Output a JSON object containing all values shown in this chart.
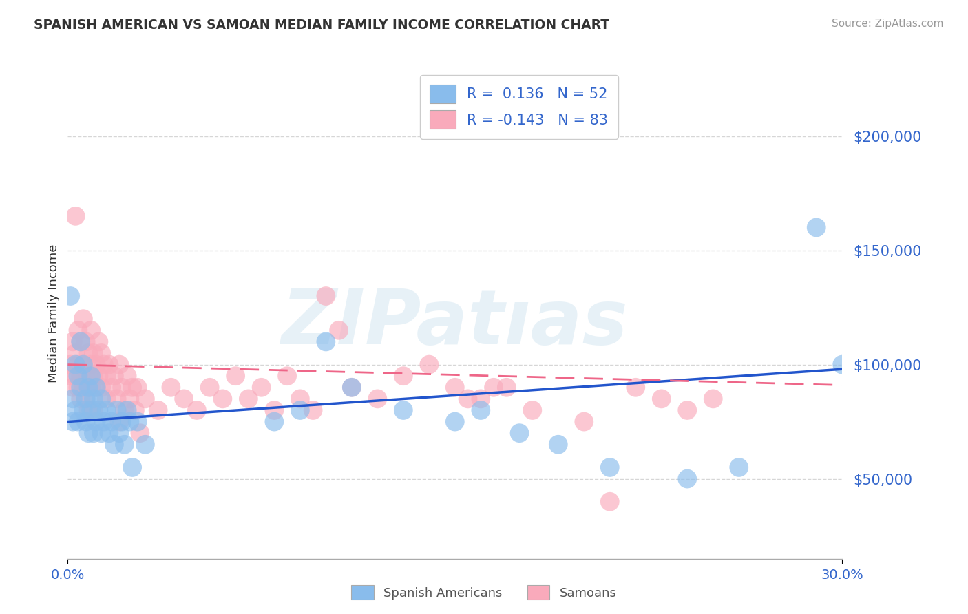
{
  "title": "SPANISH AMERICAN VS SAMOAN MEDIAN FAMILY INCOME CORRELATION CHART",
  "source": "Source: ZipAtlas.com",
  "ylabel": "Median Family Income",
  "ytick_values": [
    50000,
    100000,
    150000,
    200000
  ],
  "xmin": 0.0,
  "xmax": 0.3,
  "ymin": 15000,
  "ymax": 230000,
  "r_blue": 0.136,
  "n_blue": 52,
  "r_pink": -0.143,
  "n_pink": 83,
  "legend_label_blue": "Spanish Americans",
  "legend_label_pink": "Samoans",
  "watermark": "ZIPatıas",
  "blue_color": "#89BCEC",
  "pink_color": "#F9AABB",
  "blue_line_color": "#2255CC",
  "pink_line_color": "#EE6688",
  "axis_color": "#3366CC",
  "blue_scatter": [
    [
      0.001,
      130000
    ],
    [
      0.002,
      85000
    ],
    [
      0.002,
      75000
    ],
    [
      0.003,
      100000
    ],
    [
      0.003,
      80000
    ],
    [
      0.004,
      95000
    ],
    [
      0.004,
      75000
    ],
    [
      0.005,
      90000
    ],
    [
      0.005,
      110000
    ],
    [
      0.006,
      80000
    ],
    [
      0.006,
      100000
    ],
    [
      0.007,
      85000
    ],
    [
      0.007,
      75000
    ],
    [
      0.008,
      90000
    ],
    [
      0.008,
      70000
    ],
    [
      0.009,
      95000
    ],
    [
      0.009,
      80000
    ],
    [
      0.01,
      85000
    ],
    [
      0.01,
      70000
    ],
    [
      0.011,
      90000
    ],
    [
      0.011,
      75000
    ],
    [
      0.012,
      80000
    ],
    [
      0.013,
      70000
    ],
    [
      0.013,
      85000
    ],
    [
      0.014,
      75000
    ],
    [
      0.015,
      80000
    ],
    [
      0.016,
      70000
    ],
    [
      0.017,
      75000
    ],
    [
      0.018,
      65000
    ],
    [
      0.019,
      80000
    ],
    [
      0.02,
      70000
    ],
    [
      0.021,
      75000
    ],
    [
      0.022,
      65000
    ],
    [
      0.023,
      80000
    ],
    [
      0.024,
      75000
    ],
    [
      0.025,
      55000
    ],
    [
      0.027,
      75000
    ],
    [
      0.03,
      65000
    ],
    [
      0.08,
      75000
    ],
    [
      0.09,
      80000
    ],
    [
      0.1,
      110000
    ],
    [
      0.11,
      90000
    ],
    [
      0.13,
      80000
    ],
    [
      0.15,
      75000
    ],
    [
      0.16,
      80000
    ],
    [
      0.175,
      70000
    ],
    [
      0.19,
      65000
    ],
    [
      0.21,
      55000
    ],
    [
      0.24,
      50000
    ],
    [
      0.26,
      55000
    ],
    [
      0.29,
      160000
    ],
    [
      0.3,
      100000
    ]
  ],
  "pink_scatter": [
    [
      0.001,
      100000
    ],
    [
      0.001,
      95000
    ],
    [
      0.002,
      110000
    ],
    [
      0.002,
      90000
    ],
    [
      0.003,
      165000
    ],
    [
      0.003,
      105000
    ],
    [
      0.003,
      95000
    ],
    [
      0.004,
      115000
    ],
    [
      0.004,
      100000
    ],
    [
      0.004,
      90000
    ],
    [
      0.005,
      110000
    ],
    [
      0.005,
      95000
    ],
    [
      0.005,
      85000
    ],
    [
      0.006,
      120000
    ],
    [
      0.006,
      100000
    ],
    [
      0.006,
      90000
    ],
    [
      0.007,
      110000
    ],
    [
      0.007,
      95000
    ],
    [
      0.007,
      85000
    ],
    [
      0.008,
      105000
    ],
    [
      0.008,
      95000
    ],
    [
      0.008,
      80000
    ],
    [
      0.009,
      115000
    ],
    [
      0.009,
      100000
    ],
    [
      0.009,
      90000
    ],
    [
      0.01,
      105000
    ],
    [
      0.01,
      95000
    ],
    [
      0.01,
      80000
    ],
    [
      0.011,
      100000
    ],
    [
      0.011,
      90000
    ],
    [
      0.012,
      110000
    ],
    [
      0.012,
      95000
    ],
    [
      0.013,
      105000
    ],
    [
      0.013,
      90000
    ],
    [
      0.014,
      100000
    ],
    [
      0.015,
      95000
    ],
    [
      0.015,
      85000
    ],
    [
      0.016,
      100000
    ],
    [
      0.017,
      90000
    ],
    [
      0.018,
      95000
    ],
    [
      0.019,
      85000
    ],
    [
      0.02,
      100000
    ],
    [
      0.02,
      75000
    ],
    [
      0.021,
      90000
    ],
    [
      0.022,
      80000
    ],
    [
      0.023,
      95000
    ],
    [
      0.024,
      85000
    ],
    [
      0.025,
      90000
    ],
    [
      0.026,
      80000
    ],
    [
      0.027,
      90000
    ],
    [
      0.028,
      70000
    ],
    [
      0.03,
      85000
    ],
    [
      0.035,
      80000
    ],
    [
      0.04,
      90000
    ],
    [
      0.045,
      85000
    ],
    [
      0.05,
      80000
    ],
    [
      0.055,
      90000
    ],
    [
      0.06,
      85000
    ],
    [
      0.065,
      95000
    ],
    [
      0.07,
      85000
    ],
    [
      0.075,
      90000
    ],
    [
      0.08,
      80000
    ],
    [
      0.085,
      95000
    ],
    [
      0.09,
      85000
    ],
    [
      0.095,
      80000
    ],
    [
      0.1,
      130000
    ],
    [
      0.105,
      115000
    ],
    [
      0.11,
      90000
    ],
    [
      0.12,
      85000
    ],
    [
      0.13,
      95000
    ],
    [
      0.14,
      100000
    ],
    [
      0.15,
      90000
    ],
    [
      0.16,
      85000
    ],
    [
      0.17,
      90000
    ],
    [
      0.18,
      80000
    ],
    [
      0.2,
      75000
    ],
    [
      0.21,
      40000
    ],
    [
      0.22,
      90000
    ],
    [
      0.23,
      85000
    ],
    [
      0.24,
      80000
    ],
    [
      0.25,
      85000
    ],
    [
      0.165,
      90000
    ],
    [
      0.155,
      85000
    ]
  ],
  "blue_trend_x": [
    0.0,
    0.3
  ],
  "blue_trend_y": [
    75000,
    98000
  ],
  "pink_trend_x": [
    0.0,
    0.3
  ],
  "pink_trend_y": [
    100000,
    91000
  ],
  "grid_color": "#CCCCCC",
  "background_color": "#FFFFFF"
}
